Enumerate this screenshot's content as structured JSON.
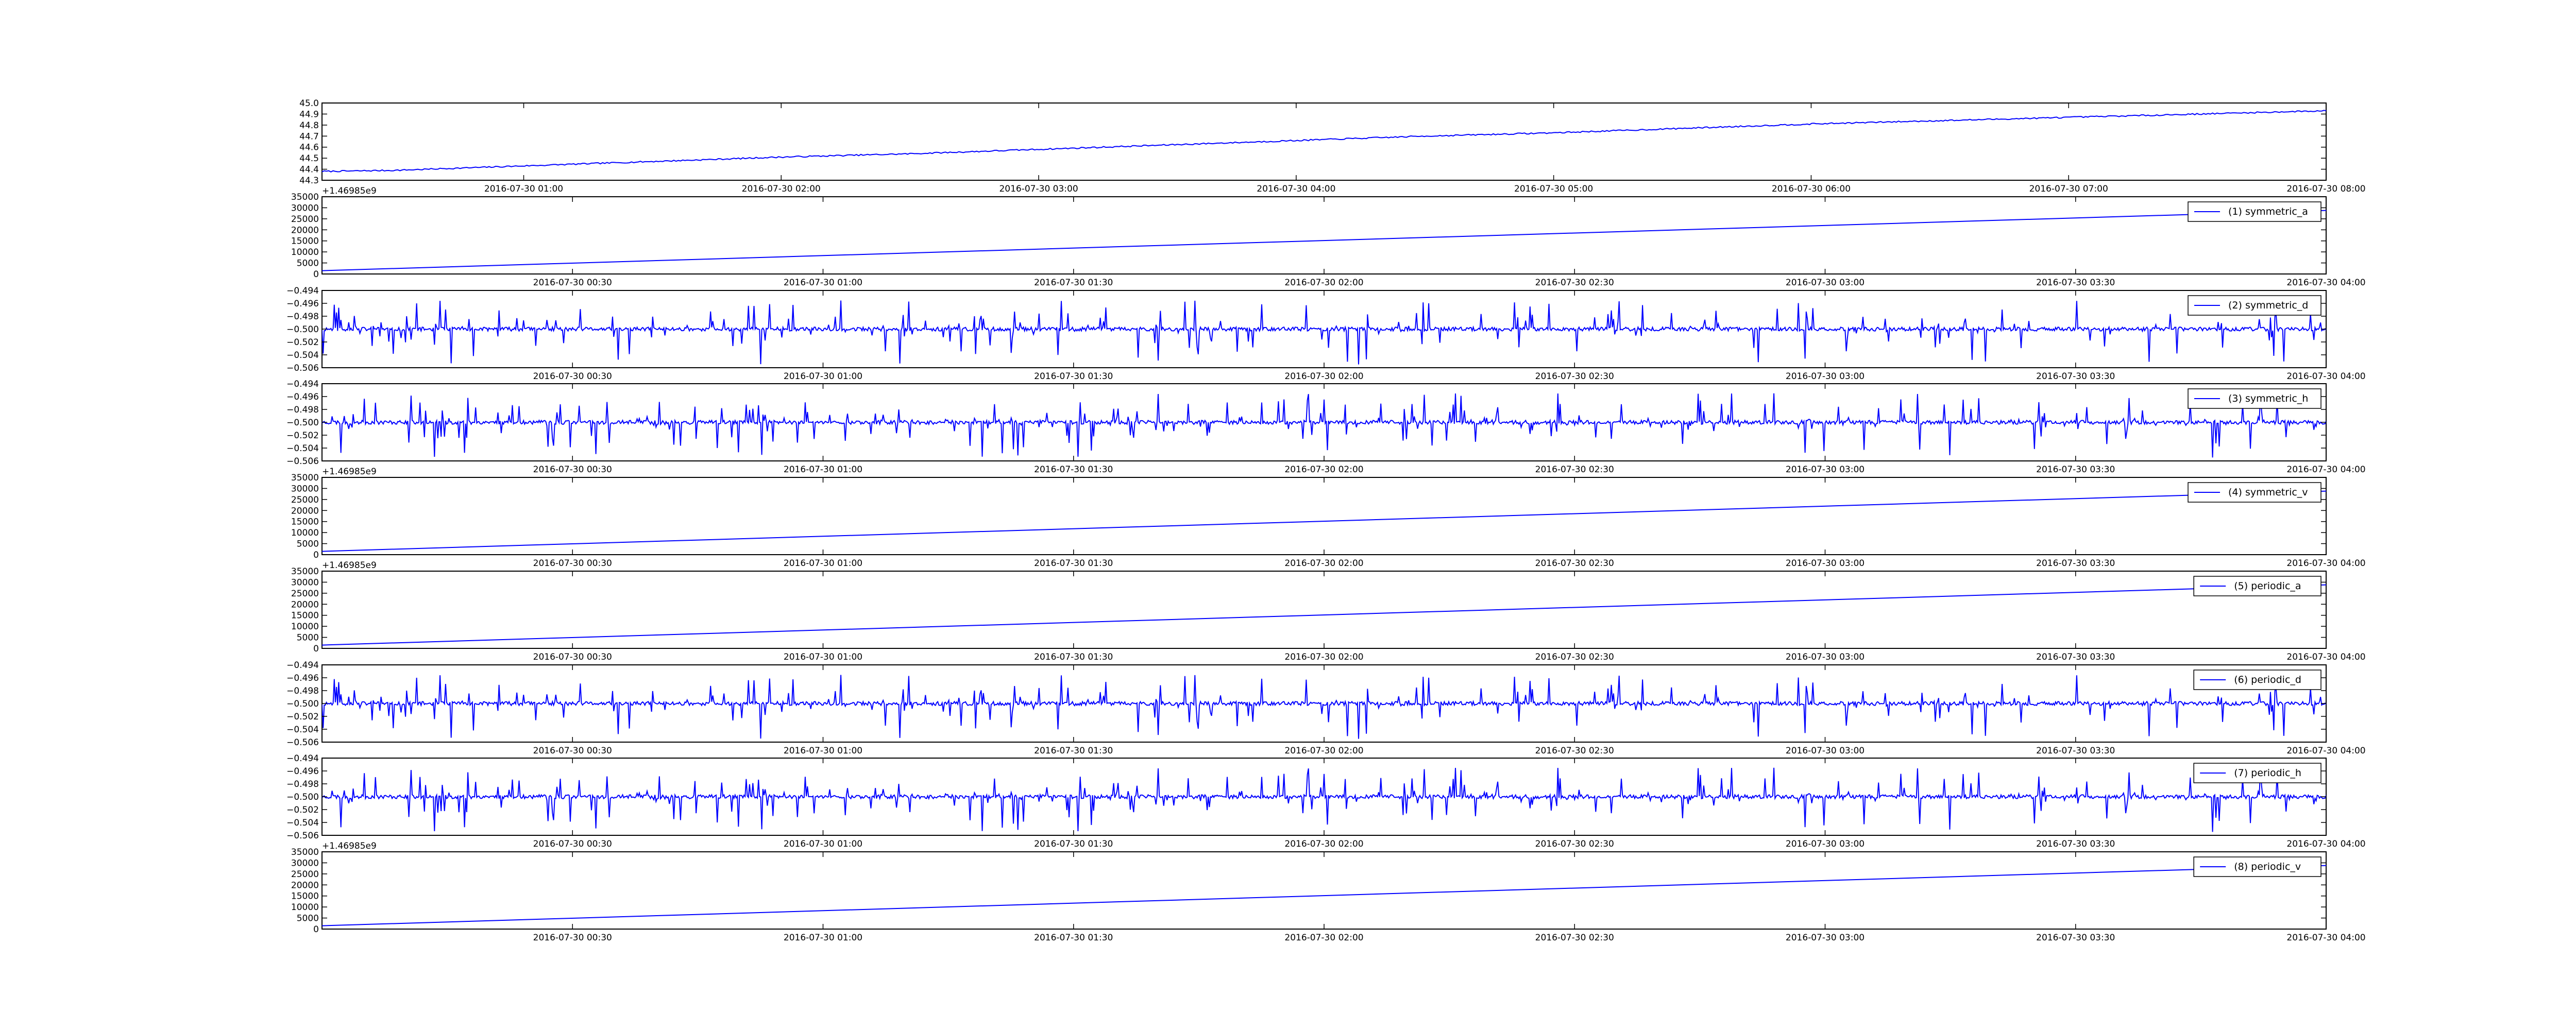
{
  "figure": {
    "line_color": "#0000ff",
    "axis_color": "#000000",
    "background": "#ffffff"
  },
  "chart_data": [
    {
      "type": "line",
      "title": "",
      "offset_text": "+1.46985e9",
      "xlabel": "",
      "ylabel": "",
      "ylim": [
        44.3,
        45.0
      ],
      "yticks": [
        "44.3",
        "44.4",
        "44.5",
        "44.6",
        "44.7",
        "44.8",
        "44.9",
        "45.0"
      ],
      "xlim": [
        "2016-07-30 00:13",
        "2016-07-30 08:00"
      ],
      "xticks": [
        "2016-07-30 01:00",
        "2016-07-30 02:00",
        "2016-07-30 03:00",
        "2016-07-30 04:00",
        "2016-07-30 05:00",
        "2016-07-30 06:00",
        "2016-07-30 07:00",
        "2016-07-30 08:00"
      ],
      "legend": null,
      "grid": false,
      "series": [
        {
          "x": [
            "2016-07-30 00:13",
            "2016-07-30 00:30",
            "2016-07-30 01:00",
            "2016-07-30 01:30",
            "2016-07-30 02:00",
            "2016-07-30 02:30",
            "2016-07-30 03:00",
            "2016-07-30 03:30",
            "2016-07-30 04:00",
            "2016-07-30 04:30",
            "2016-07-30 05:00",
            "2016-07-30 05:30",
            "2016-07-30 06:00",
            "2016-07-30 06:30",
            "2016-07-30 07:00",
            "2016-07-30 07:30",
            "2016-07-30 08:00"
          ],
          "y": [
            44.38,
            44.39,
            44.43,
            44.47,
            44.51,
            44.54,
            44.58,
            44.62,
            44.66,
            44.7,
            44.73,
            44.77,
            44.81,
            44.84,
            44.87,
            44.9,
            44.93
          ],
          "noise": 0.006
        }
      ]
    },
    {
      "type": "line",
      "title": "",
      "offset_text": "",
      "ylim": [
        0,
        35000
      ],
      "yticks": [
        "0",
        "5000",
        "10000",
        "15000",
        "20000",
        "25000",
        "30000",
        "35000"
      ],
      "xlim": [
        "2016-07-30 00:00",
        "2016-07-30 04:00"
      ],
      "xticks": [
        "2016-07-30 00:30",
        "2016-07-30 01:00",
        "2016-07-30 01:30",
        "2016-07-30 02:00",
        "2016-07-30 02:30",
        "2016-07-30 03:00",
        "2016-07-30 03:30",
        "2016-07-30 04:00"
      ],
      "legend": {
        "label": "(1) symmetric_a",
        "placement": "upper right"
      },
      "grid": false,
      "series": [
        {
          "name": "(1) symmetric_a",
          "x": [
            "2016-07-30 00:00",
            "2016-07-30 04:00"
          ],
          "y": [
            1500,
            28800
          ]
        }
      ]
    },
    {
      "type": "line",
      "title": "",
      "offset_text": "",
      "ylim": [
        -0.506,
        -0.494
      ],
      "yticks": [
        "−0.506",
        "−0.504",
        "−0.502",
        "−0.500",
        "−0.498",
        "−0.496",
        "−0.494"
      ],
      "xlim": [
        "2016-07-30 00:00",
        "2016-07-30 04:00"
      ],
      "xticks": [
        "2016-07-30 00:30",
        "2016-07-30 01:00",
        "2016-07-30 01:30",
        "2016-07-30 02:00",
        "2016-07-30 02:30",
        "2016-07-30 03:00",
        "2016-07-30 03:30",
        "2016-07-30 04:00"
      ],
      "legend": {
        "label": "(2) symmetric_d",
        "placement": "upper right"
      },
      "grid": false,
      "series": [
        {
          "name": "(2) symmetric_d",
          "baseline": -0.5,
          "spike_max_up": -0.4955,
          "spike_max_down": -0.5055,
          "seed": 11
        }
      ]
    },
    {
      "type": "line",
      "title": "",
      "offset_text": "+1.46985e9",
      "ylim": [
        -0.506,
        -0.494
      ],
      "yticks": [
        "−0.506",
        "−0.504",
        "−0.502",
        "−0.500",
        "−0.498",
        "−0.496",
        "−0.494"
      ],
      "xlim": [
        "2016-07-30 00:00",
        "2016-07-30 04:00"
      ],
      "xticks": [
        "2016-07-30 00:30",
        "2016-07-30 01:00",
        "2016-07-30 01:30",
        "2016-07-30 02:00",
        "2016-07-30 02:30",
        "2016-07-30 03:00",
        "2016-07-30 03:30",
        "2016-07-30 04:00"
      ],
      "legend": {
        "label": "(3) symmetric_h",
        "placement": "upper right"
      },
      "grid": false,
      "series": [
        {
          "name": "(3) symmetric_h",
          "baseline": -0.5,
          "spike_max_up": -0.4955,
          "spike_max_down": -0.5055,
          "seed": 23
        }
      ]
    },
    {
      "type": "line",
      "title": "",
      "offset_text": "+1.46985e9",
      "ylim": [
        0,
        35000
      ],
      "yticks": [
        "0",
        "5000",
        "10000",
        "15000",
        "20000",
        "25000",
        "30000",
        "35000"
      ],
      "xlim": [
        "2016-07-30 00:00",
        "2016-07-30 04:00"
      ],
      "xticks": [
        "2016-07-30 00:30",
        "2016-07-30 01:00",
        "2016-07-30 01:30",
        "2016-07-30 02:00",
        "2016-07-30 02:30",
        "2016-07-30 03:00",
        "2016-07-30 03:30",
        "2016-07-30 04:00"
      ],
      "legend": {
        "label": "(4) symmetric_v",
        "placement": "upper right"
      },
      "grid": false,
      "series": [
        {
          "name": "(4) symmetric_v",
          "x": [
            "2016-07-30 00:00",
            "2016-07-30 04:00"
          ],
          "y": [
            1500,
            28800
          ]
        }
      ]
    },
    {
      "type": "line",
      "title": "",
      "offset_text": "",
      "ylim": [
        0,
        35000
      ],
      "yticks": [
        "0",
        "5000",
        "10000",
        "15000",
        "20000",
        "25000",
        "30000",
        "35000"
      ],
      "xlim": [
        "2016-07-30 00:00",
        "2016-07-30 04:00"
      ],
      "xticks": [
        "2016-07-30 00:30",
        "2016-07-30 01:00",
        "2016-07-30 01:30",
        "2016-07-30 02:00",
        "2016-07-30 02:30",
        "2016-07-30 03:00",
        "2016-07-30 03:30",
        "2016-07-30 04:00"
      ],
      "legend": {
        "label": "(5) periodic_a",
        "placement": "upper right"
      },
      "grid": false,
      "series": [
        {
          "name": "(5) periodic_a",
          "x": [
            "2016-07-30 00:00",
            "2016-07-30 04:00"
          ],
          "y": [
            1500,
            28800
          ]
        }
      ]
    },
    {
      "type": "line",
      "title": "",
      "offset_text": "",
      "ylim": [
        -0.506,
        -0.494
      ],
      "yticks": [
        "−0.506",
        "−0.504",
        "−0.502",
        "−0.500",
        "−0.498",
        "−0.496",
        "−0.494"
      ],
      "xlim": [
        "2016-07-30 00:00",
        "2016-07-30 04:00"
      ],
      "xticks": [
        "2016-07-30 00:30",
        "2016-07-30 01:00",
        "2016-07-30 01:30",
        "2016-07-30 02:00",
        "2016-07-30 02:30",
        "2016-07-30 03:00",
        "2016-07-30 03:30",
        "2016-07-30 04:00"
      ],
      "legend": {
        "label": "(6) periodic_d",
        "placement": "upper right"
      },
      "grid": false,
      "series": [
        {
          "name": "(6) periodic_d",
          "baseline": -0.5,
          "spike_max_up": -0.4955,
          "spike_max_down": -0.5055,
          "seed": 11
        }
      ]
    },
    {
      "type": "line",
      "title": "",
      "offset_text": "+1.46985e9",
      "ylim": [
        -0.506,
        -0.494
      ],
      "yticks": [
        "−0.506",
        "−0.504",
        "−0.502",
        "−0.500",
        "−0.498",
        "−0.496",
        "−0.494"
      ],
      "xlim": [
        "2016-07-30 00:00",
        "2016-07-30 04:00"
      ],
      "xticks": [
        "2016-07-30 00:30",
        "2016-07-30 01:00",
        "2016-07-30 01:30",
        "2016-07-30 02:00",
        "2016-07-30 02:30",
        "2016-07-30 03:00",
        "2016-07-30 03:30",
        "2016-07-30 04:00"
      ],
      "legend": {
        "label": "(7) periodic_h",
        "placement": "upper right"
      },
      "grid": false,
      "series": [
        {
          "name": "(7) periodic_h",
          "baseline": -0.5,
          "spike_max_up": -0.4955,
          "spike_max_down": -0.5055,
          "seed": 23
        }
      ]
    },
    {
      "type": "line",
      "title": "",
      "offset_text": "",
      "ylim": [
        0,
        35000
      ],
      "yticks": [
        "0",
        "5000",
        "10000",
        "15000",
        "20000",
        "25000",
        "30000",
        "35000"
      ],
      "xlim": [
        "2016-07-30 00:00",
        "2016-07-30 04:00"
      ],
      "xticks": [
        "2016-07-30 00:30",
        "2016-07-30 01:00",
        "2016-07-30 01:30",
        "2016-07-30 02:00",
        "2016-07-30 02:30",
        "2016-07-30 03:00",
        "2016-07-30 03:30",
        "2016-07-30 04:00"
      ],
      "legend": {
        "label": "(8) periodic_v",
        "placement": "upper right"
      },
      "grid": false,
      "series": [
        {
          "name": "(8) periodic_v",
          "x": [
            "2016-07-30 00:00",
            "2016-07-30 04:00"
          ],
          "y": [
            1500,
            28800
          ]
        }
      ]
    }
  ]
}
